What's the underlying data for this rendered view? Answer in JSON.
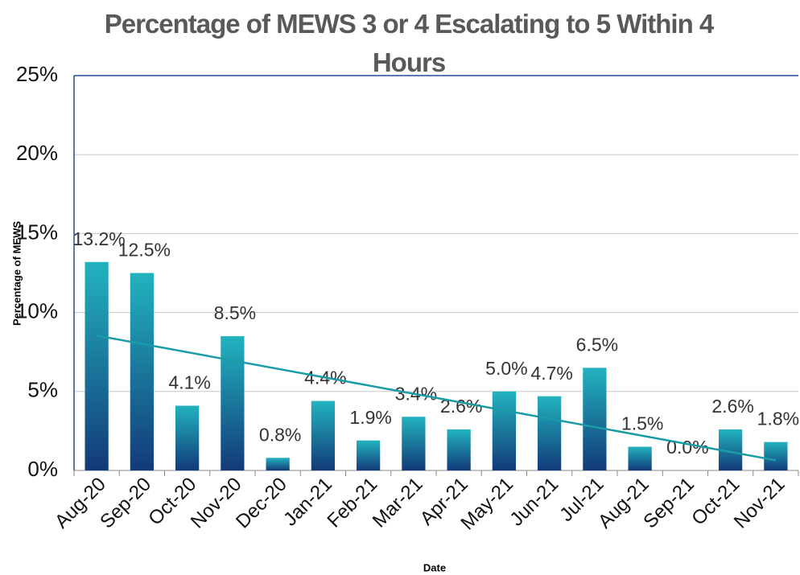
{
  "chart_data": {
    "type": "bar",
    "title": "Percentage of MEWS 3 or 4 Escalating to 5 Within 4 Hours",
    "x_label": "Date",
    "y_label": "Percentage of MEWS",
    "categories": [
      "Aug-20",
      "Sep-20",
      "Oct-20",
      "Nov-20",
      "Dec-20",
      "Jan-21",
      "Feb-21",
      "Mar-21",
      "Apr-21",
      "May-21",
      "Jun-21",
      "Jul-21",
      "Aug-21",
      "Sep-21",
      "Oct-21",
      "Nov-21"
    ],
    "values": [
      13.2,
      12.5,
      4.1,
      8.5,
      0.8,
      4.4,
      1.9,
      3.4,
      2.6,
      5.0,
      4.7,
      6.5,
      1.5,
      0.0,
      2.6,
      1.8
    ],
    "value_labels": [
      "13.2%",
      "12.5%",
      "4.1%",
      "8.5%",
      "0.8%",
      "4.4%",
      "1.9%",
      "3.4%",
      "2.6%",
      "5.0%",
      "4.7%",
      "6.5%",
      "1.5%",
      "0.0%",
      "2.6%",
      "1.8%"
    ],
    "ylim": [
      0,
      25
    ],
    "yticks": [
      {
        "value": 0,
        "label": "0%"
      },
      {
        "value": 5,
        "label": "5%"
      },
      {
        "value": 10,
        "label": "10%"
      },
      {
        "value": 15,
        "label": "15%"
      },
      {
        "value": 20,
        "label": "20%"
      },
      {
        "value": 25,
        "label": "25%"
      }
    ],
    "grid": true,
    "trendline": true,
    "trendline_color": "#1a9ca6",
    "color": "#1a8fa6"
  }
}
